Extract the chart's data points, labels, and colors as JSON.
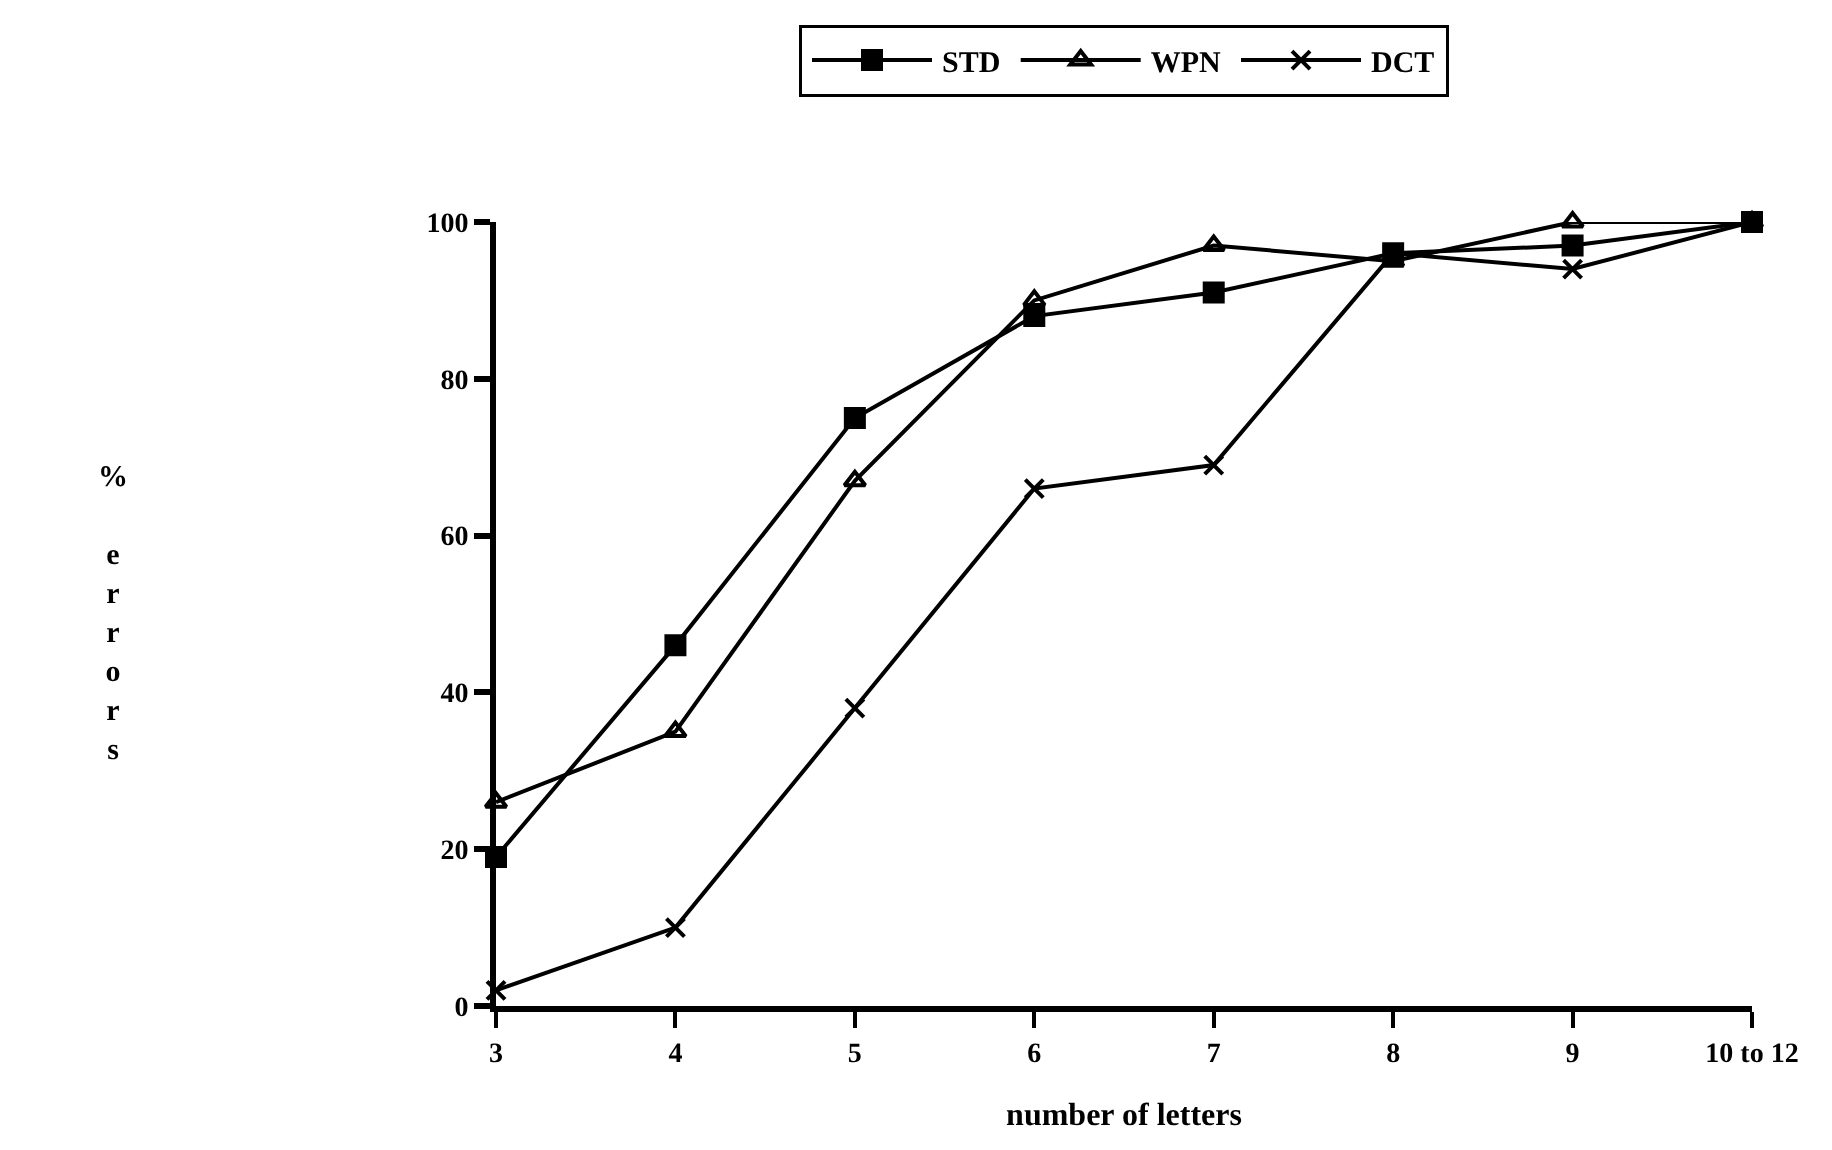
{
  "chart_data": {
    "type": "line",
    "xlabel": "number of letters",
    "ylabel": "% errors",
    "categories": [
      "3",
      "4",
      "5",
      "6",
      "7",
      "8",
      "9",
      "10 to 12"
    ],
    "series": [
      {
        "name": "STD",
        "color": "#000000",
        "marker": "square",
        "values": [
          19,
          46,
          75,
          88,
          91,
          96,
          97,
          100
        ]
      },
      {
        "name": "WPN",
        "color": "#000000",
        "marker": "triangle",
        "values": [
          26,
          35,
          67,
          90,
          97,
          95,
          100,
          100
        ]
      },
      {
        "name": "DCT",
        "color": "#000000",
        "marker": "cross",
        "values": [
          2,
          10,
          38,
          66,
          69,
          96,
          94,
          100
        ]
      }
    ],
    "ylim": [
      0,
      100
    ],
    "yticks": [
      0,
      20,
      40,
      60,
      80,
      100
    ],
    "legend": "top",
    "line_style": "solid"
  }
}
